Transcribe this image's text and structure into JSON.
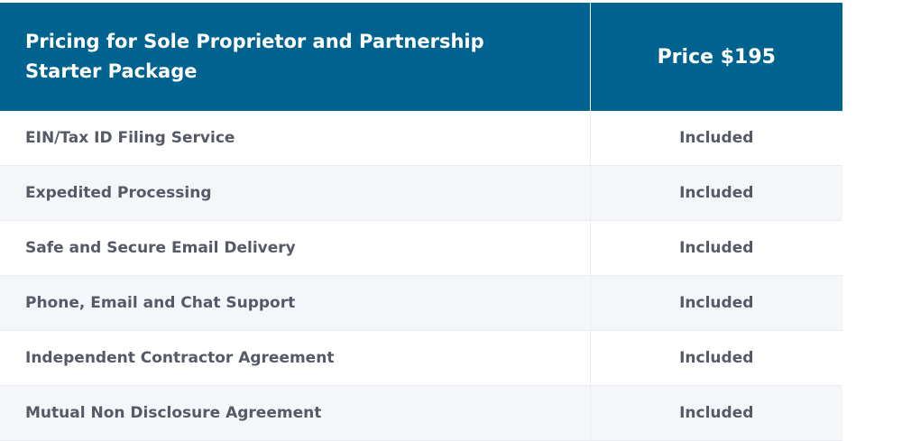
{
  "table": {
    "header": {
      "feature_title": "Pricing for Sole Proprietor and Partnership Starter Package",
      "price_title": "Price $195"
    },
    "rows": [
      {
        "feature": "EIN/Tax ID Filing Service",
        "status": "Included"
      },
      {
        "feature": "Expedited Processing",
        "status": "Included"
      },
      {
        "feature": "Safe and Secure Email Delivery",
        "status": "Included"
      },
      {
        "feature": "Phone, Email and Chat Support",
        "status": "Included"
      },
      {
        "feature": "Independent Contractor Agreement",
        "status": "Included"
      },
      {
        "feature": "Mutual Non Disclosure Agreement",
        "status": "Included"
      }
    ],
    "colors": {
      "header_background": "#00628f",
      "header_text": "#ffffff",
      "row_text": "#555a66",
      "alt_row_background": "#f5f6fa"
    }
  }
}
